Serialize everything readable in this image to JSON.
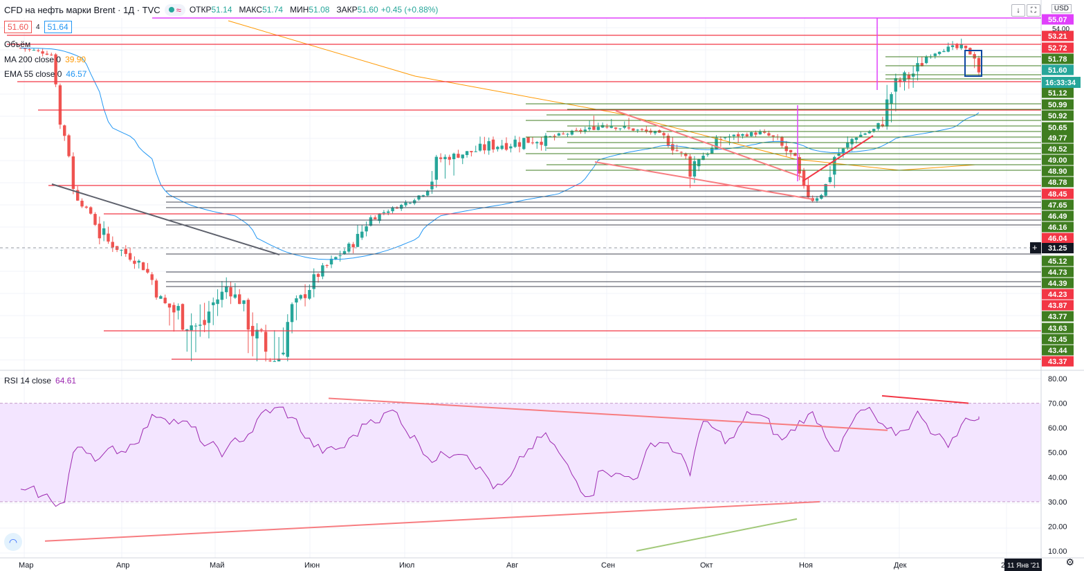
{
  "header": {
    "symbol": "CFD на нефть марки Brent · 1Д · TVC",
    "open_label": "ОТКР",
    "open": "51.14",
    "high_label": "МАКС",
    "high": "51.74",
    "low_label": "МИН",
    "low": "51.08",
    "close_label": "ЗАКР",
    "close": "51.60",
    "change": "+0.45 (+0.88%)"
  },
  "trade": {
    "sell": "51.60",
    "spread": "4",
    "buy": "51.64"
  },
  "legends": {
    "volume": "Объём",
    "ma_label": "MA 200 close 0",
    "ma_value": "39.90",
    "ema_label": "EMA 55 close 0",
    "ema_value": "46.57",
    "rsi_label": "RSI 14 close",
    "rsi_value": "64.61"
  },
  "currency": "USD",
  "crosshair_price": "31.25",
  "countdown": "16:33:34",
  "date_badge": "11 Янв '21",
  "colors": {
    "up": "#26a69a",
    "down": "#ef5350",
    "ma": "#ff9800",
    "ema": "#2196f3",
    "rsi": "#9c27b0",
    "level": "#f23645",
    "support": "#3f7d20"
  },
  "chart_data": [
    {
      "type": "candlestick",
      "x_ticks": [
        "Мар",
        "Апр",
        "Май",
        "Июн",
        "Июл",
        "Авг",
        "Сен",
        "Окт",
        "Ноя",
        "Дек",
        "20"
      ],
      "last_price": 51.6,
      "price_axis": {
        "major": [
          "54.00"
        ],
        "labels": [
          {
            "v": 55.07,
            "c": "#e040fb"
          },
          {
            "v": 53.21,
            "c": "#f23645"
          },
          {
            "v": 52.72,
            "c": "#f23645"
          },
          {
            "v": 51.78,
            "c": "#3f7d20"
          },
          {
            "v": 51.6,
            "c": "#26a69a"
          },
          {
            "v": 51.12,
            "c": "#3f7d20"
          },
          {
            "v": 50.99,
            "c": "#3f7d20"
          },
          {
            "v": 50.92,
            "c": "#3f7d20"
          },
          {
            "v": 50.65,
            "c": "#3f7d20"
          },
          {
            "v": 49.77,
            "c": "#3f7d20"
          },
          {
            "v": 49.52,
            "c": "#3f7d20"
          },
          {
            "v": 49.0,
            "c": "#3f7d20"
          },
          {
            "v": 48.9,
            "c": "#3f7d20"
          },
          {
            "v": 48.78,
            "c": "#3f7d20"
          },
          {
            "v": 48.45,
            "c": "#f23645"
          },
          {
            "v": 47.65,
            "c": "#3f7d20"
          },
          {
            "v": 46.49,
            "c": "#3f7d20"
          },
          {
            "v": 46.16,
            "c": "#3f7d20"
          },
          {
            "v": 46.04,
            "c": "#f23645"
          },
          {
            "v": 45.12,
            "c": "#3f7d20"
          },
          {
            "v": 44.73,
            "c": "#3f7d20"
          },
          {
            "v": 44.39,
            "c": "#3f7d20"
          },
          {
            "v": 44.23,
            "c": "#f23645"
          },
          {
            "v": 43.87,
            "c": "#f23645"
          },
          {
            "v": 43.77,
            "c": "#3f7d20"
          },
          {
            "v": 43.63,
            "c": "#3f7d20"
          },
          {
            "v": 43.45,
            "c": "#3f7d20"
          },
          {
            "v": 43.44,
            "c": "#3f7d20"
          },
          {
            "v": 43.37,
            "c": "#f23645"
          }
        ]
      },
      "series": [
        {
          "name": "MA 200 close 0",
          "value": 39.9
        },
        {
          "name": "EMA 55 close 0",
          "value": 46.57
        }
      ]
    },
    {
      "type": "line",
      "y_ticks": [
        "80.00",
        "70.00",
        "60.00",
        "50.00",
        "40.00",
        "30.00",
        "20.00",
        "10.00"
      ],
      "ylim": [
        10,
        80
      ],
      "band": [
        30,
        70
      ],
      "series": [
        {
          "name": "RSI 14 close",
          "last": 64.61
        }
      ]
    }
  ]
}
